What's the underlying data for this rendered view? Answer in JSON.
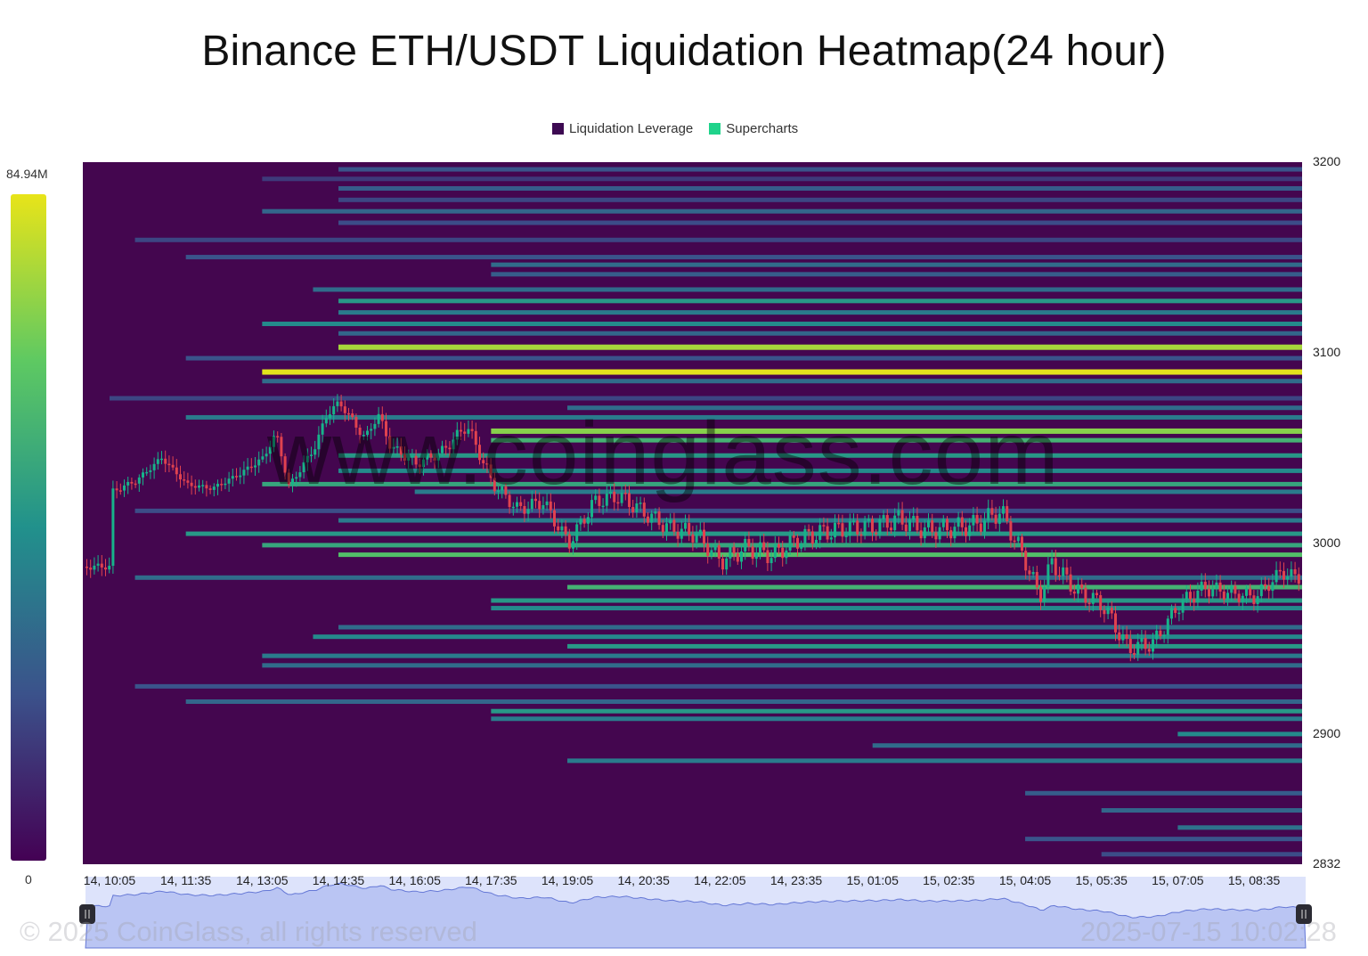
{
  "chart_data": {
    "type": "heatmap",
    "title": "Binance ETH/USDT Liquidation Heatmap(24 hour)",
    "legend": [
      {
        "name": "Liquidation Leverage",
        "color": "#3d0a52"
      },
      {
        "name": "Supercharts",
        "color": "#1fd38b"
      }
    ],
    "legend_position": "top-center",
    "color_scale": {
      "min": 0,
      "max": 84.94,
      "min_label": "0",
      "max_label": "84.94M",
      "unit": "M"
    },
    "y_axis": {
      "range": [
        2832,
        3200
      ],
      "ticks": [
        "3200",
        "3100",
        "3000",
        "2900",
        "2832"
      ],
      "position": "right"
    },
    "x_axis": {
      "ticks": [
        "14, 10:05",
        "14, 11:35",
        "14, 13:05",
        "14, 14:35",
        "14, 16:05",
        "14, 17:35",
        "14, 19:05",
        "14, 20:35",
        "14, 22:05",
        "14, 23:35",
        "15, 01:05",
        "15, 02:35",
        "15, 04:05",
        "15, 05:35",
        "15, 07:05",
        "15, 08:35"
      ],
      "start": "14, 10:05",
      "end": "15, 10:02"
    },
    "bands": [
      {
        "price": 3196,
        "start": "14, 14:35",
        "value": 22
      },
      {
        "price": 3191,
        "start": "14, 13:05",
        "value": 15
      },
      {
        "price": 3186,
        "start": "14, 14:35",
        "value": 25
      },
      {
        "price": 3180,
        "start": "14, 14:35",
        "value": 18
      },
      {
        "price": 3174,
        "start": "14, 13:05",
        "value": 28
      },
      {
        "price": 3168,
        "start": "14, 14:35",
        "value": 20
      },
      {
        "price": 3159,
        "start": "14, 10:35",
        "value": 18
      },
      {
        "price": 3150,
        "start": "14, 11:35",
        "value": 22
      },
      {
        "price": 3146,
        "start": "14, 17:35",
        "value": 30
      },
      {
        "price": 3141,
        "start": "14, 17:35",
        "value": 25
      },
      {
        "price": 3133,
        "start": "14, 14:05",
        "value": 30
      },
      {
        "price": 3127,
        "start": "14, 14:35",
        "value": 45
      },
      {
        "price": 3121,
        "start": "14, 14:35",
        "value": 35
      },
      {
        "price": 3115,
        "start": "14, 13:05",
        "value": 40
      },
      {
        "price": 3110,
        "start": "14, 14:35",
        "value": 28
      },
      {
        "price": 3103,
        "start": "14, 14:35",
        "value": 75
      },
      {
        "price": 3097,
        "start": "14, 11:35",
        "value": 22
      },
      {
        "price": 3090,
        "start": "14, 13:05",
        "value": 84
      },
      {
        "price": 3085,
        "start": "14, 13:05",
        "value": 30
      },
      {
        "price": 3076,
        "start": "14, 10:05",
        "value": 18
      },
      {
        "price": 3071,
        "start": "14, 19:05",
        "value": 30
      },
      {
        "price": 3066,
        "start": "14, 11:35",
        "value": 35
      },
      {
        "price": 3059,
        "start": "14, 17:35",
        "value": 70
      },
      {
        "price": 3054,
        "start": "14, 17:35",
        "value": 55
      },
      {
        "price": 3046,
        "start": "14, 14:35",
        "value": 45
      },
      {
        "price": 3038,
        "start": "14, 14:35",
        "value": 40
      },
      {
        "price": 3031,
        "start": "14, 13:05",
        "value": 50
      },
      {
        "price": 3027,
        "start": "14, 16:05",
        "value": 35
      },
      {
        "price": 3017,
        "start": "14, 10:35",
        "value": 20
      },
      {
        "price": 3012,
        "start": "14, 14:35",
        "value": 35
      },
      {
        "price": 3005,
        "start": "14, 11:35",
        "value": 45
      },
      {
        "price": 2999,
        "start": "14, 13:05",
        "value": 50
      },
      {
        "price": 2994,
        "start": "14, 14:35",
        "value": 60
      },
      {
        "price": 2982,
        "start": "14, 10:35",
        "value": 30
      },
      {
        "price": 2977,
        "start": "14, 19:05",
        "value": 55
      },
      {
        "price": 2970,
        "start": "14, 17:35",
        "value": 45
      },
      {
        "price": 2966,
        "start": "14, 17:35",
        "value": 40
      },
      {
        "price": 2956,
        "start": "14, 14:35",
        "value": 30
      },
      {
        "price": 2951,
        "start": "14, 14:05",
        "value": 40
      },
      {
        "price": 2946,
        "start": "14, 19:05",
        "value": 45
      },
      {
        "price": 2941,
        "start": "14, 13:05",
        "value": 35
      },
      {
        "price": 2936,
        "start": "14, 13:05",
        "value": 30
      },
      {
        "price": 2925,
        "start": "14, 10:35",
        "value": 22
      },
      {
        "price": 2917,
        "start": "14, 11:35",
        "value": 28
      },
      {
        "price": 2912,
        "start": "14, 17:35",
        "value": 45
      },
      {
        "price": 2908,
        "start": "14, 17:35",
        "value": 35
      },
      {
        "price": 2900,
        "start": "15, 07:05",
        "value": 40
      },
      {
        "price": 2894,
        "start": "15, 01:05",
        "value": 30
      },
      {
        "price": 2886,
        "start": "14, 19:05",
        "value": 35
      },
      {
        "price": 2869,
        "start": "15, 04:05",
        "value": 25
      },
      {
        "price": 2860,
        "start": "15, 05:35",
        "value": 28
      },
      {
        "price": 2851,
        "start": "15, 07:05",
        "value": 32
      },
      {
        "price": 2845,
        "start": "15, 04:05",
        "value": 22
      },
      {
        "price": 2837,
        "start": "15, 05:35",
        "value": 20
      }
    ],
    "price_series": [
      {
        "time": "14, 10:05",
        "price": 3027
      },
      {
        "time": "14, 10:35",
        "price": 3033
      },
      {
        "time": "14, 11:05",
        "price": 3045
      },
      {
        "time": "14, 11:35",
        "price": 3031
      },
      {
        "time": "14, 12:05",
        "price": 3029
      },
      {
        "time": "14, 12:35",
        "price": 3036
      },
      {
        "time": "14, 13:05",
        "price": 3045
      },
      {
        "time": "14, 13:20",
        "price": 3058
      },
      {
        "time": "14, 13:35",
        "price": 3030
      },
      {
        "time": "14, 14:05",
        "price": 3050
      },
      {
        "time": "14, 14:20",
        "price": 3068
      },
      {
        "time": "14, 14:35",
        "price": 3074
      },
      {
        "time": "14, 15:05",
        "price": 3055
      },
      {
        "time": "14, 15:20",
        "price": 3068
      },
      {
        "time": "14, 15:35",
        "price": 3051
      },
      {
        "time": "14, 16:05",
        "price": 3042
      },
      {
        "time": "14, 16:35",
        "price": 3048
      },
      {
        "time": "14, 17:05",
        "price": 3062
      },
      {
        "time": "14, 17:35",
        "price": 3032
      },
      {
        "time": "14, 18:05",
        "price": 3018
      },
      {
        "time": "14, 18:35",
        "price": 3022
      },
      {
        "time": "14, 19:05",
        "price": 3000
      },
      {
        "time": "14, 19:35",
        "price": 3022
      },
      {
        "time": "14, 20:05",
        "price": 3025
      },
      {
        "time": "14, 20:35",
        "price": 3016
      },
      {
        "time": "14, 21:05",
        "price": 3008
      },
      {
        "time": "14, 21:35",
        "price": 3005
      },
      {
        "time": "14, 22:05",
        "price": 2991
      },
      {
        "time": "14, 22:35",
        "price": 2998
      },
      {
        "time": "14, 23:05",
        "price": 2994
      },
      {
        "time": "14, 23:35",
        "price": 3002
      },
      {
        "time": "15, 00:05",
        "price": 3006
      },
      {
        "time": "15, 00:35",
        "price": 3008
      },
      {
        "time": "15, 01:05",
        "price": 3009
      },
      {
        "time": "15, 01:35",
        "price": 3013
      },
      {
        "time": "15, 02:05",
        "price": 3007
      },
      {
        "time": "15, 02:35",
        "price": 3008
      },
      {
        "time": "15, 03:05",
        "price": 3010
      },
      {
        "time": "15, 03:35",
        "price": 3017
      },
      {
        "time": "15, 04:05",
        "price": 2990
      },
      {
        "time": "15, 04:20",
        "price": 2972
      },
      {
        "time": "15, 04:35",
        "price": 2990
      },
      {
        "time": "15, 05:05",
        "price": 2975
      },
      {
        "time": "15, 05:35",
        "price": 2968
      },
      {
        "time": "15, 06:05",
        "price": 2945
      },
      {
        "time": "15, 06:35",
        "price": 2948
      },
      {
        "time": "15, 07:05",
        "price": 2968
      },
      {
        "time": "15, 07:35",
        "price": 2977
      },
      {
        "time": "15, 08:05",
        "price": 2974
      },
      {
        "time": "15, 08:35",
        "price": 2972
      },
      {
        "time": "15, 09:05",
        "price": 2985
      },
      {
        "time": "15, 09:35",
        "price": 2981
      },
      {
        "time": "15, 10:02",
        "price": 2988
      }
    ]
  },
  "watermark": "www.coinglass.com",
  "copyright": "© 2025 CoinGlass, all rights reserved",
  "timestamp": "2025-07-15 10:02:28",
  "colors": {
    "background": "#44064f",
    "up_candle": "#17b38a",
    "down_candle": "#e0424f",
    "navigator": "#dde3fb"
  }
}
